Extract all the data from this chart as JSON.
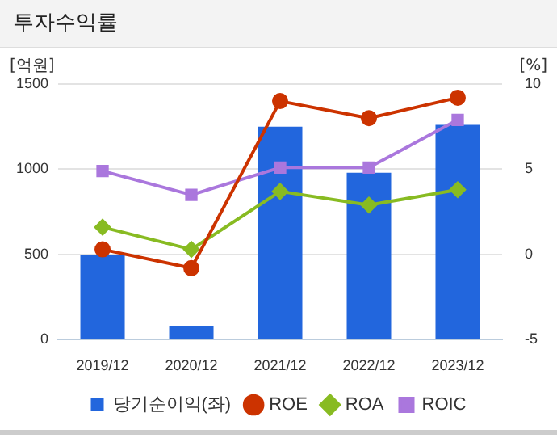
{
  "chart_data": {
    "type": "bar",
    "title": "투자수익률",
    "ylabel": "[억원]",
    "y2label": "[%]",
    "categories": [
      "2019/12",
      "2020/12",
      "2021/12",
      "2022/12",
      "2023/12"
    ],
    "series": [
      {
        "name": "당기순이익(좌)",
        "color": "#2266dd",
        "values": [
          500,
          80,
          1250,
          980,
          1260
        ]
      },
      {
        "name": "ROE",
        "type": "line",
        "axis": "y2",
        "color": "#cc3300",
        "marker": "circle",
        "values": [
          0.3,
          -0.8,
          9.0,
          8.0,
          9.2
        ]
      },
      {
        "name": "ROA",
        "type": "line",
        "axis": "y2",
        "color": "#88bb22",
        "marker": "diamond",
        "values": [
          1.6,
          0.3,
          3.7,
          2.9,
          3.8
        ]
      },
      {
        "name": "ROIC",
        "type": "line",
        "axis": "y2",
        "color": "#aa77dd",
        "marker": "square",
        "values": [
          4.9,
          3.5,
          5.1,
          5.1,
          7.9
        ]
      }
    ],
    "ylim": [
      0,
      1500
    ],
    "yticks": [
      0,
      500,
      1000,
      1500
    ],
    "y2lim": [
      -5,
      10
    ],
    "y2ticks": [
      -5,
      0,
      5,
      10
    ],
    "grid": "y",
    "legend": "bottom"
  }
}
